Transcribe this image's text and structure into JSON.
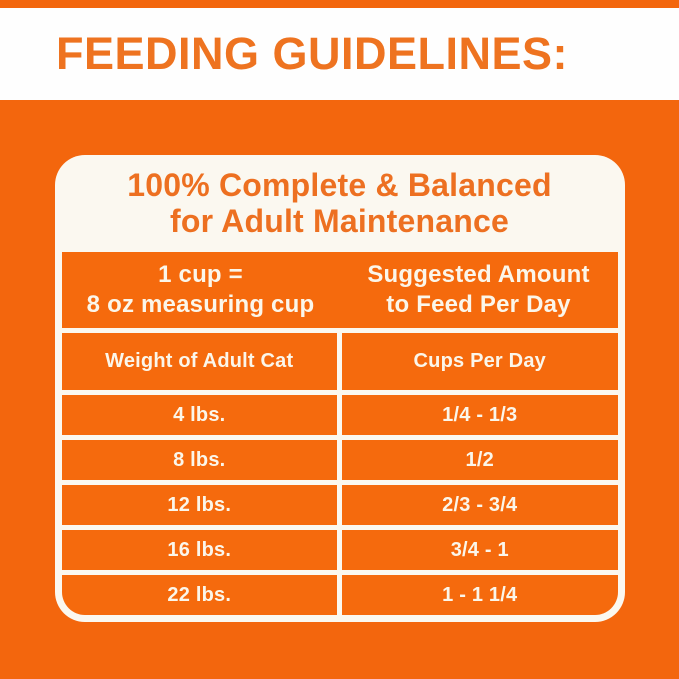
{
  "page": {
    "heading": "FEEDING GUIDELINES:",
    "colors": {
      "background_orange": "#F3660D",
      "cell_orange": "#F56A0D",
      "heading_orange": "#EE7320",
      "title_orange": "#ED7021",
      "card_white": "#FBF8F0",
      "table_text_white": "#FBF6EA"
    }
  },
  "card": {
    "title_line1": "100% Complete & Balanced",
    "title_line2": "for Adult Maintenance",
    "band": {
      "left_line1": "1 cup =",
      "left_line2": "8 oz measuring cup",
      "right_line1": "Suggested Amount",
      "right_line2": "to Feed Per Day"
    },
    "table": {
      "columns": [
        "Weight of Adult Cat",
        "Cups Per Day"
      ],
      "rows": [
        {
          "weight": "4 lbs.",
          "cups": "1/4 - 1/3"
        },
        {
          "weight": "8 lbs.",
          "cups": "1/2"
        },
        {
          "weight": "12 lbs.",
          "cups": "2/3 - 3/4"
        },
        {
          "weight": "16 lbs.",
          "cups": "3/4 - 1"
        },
        {
          "weight": "22 lbs.",
          "cups": "1 - 1 1/4"
        }
      ]
    }
  }
}
